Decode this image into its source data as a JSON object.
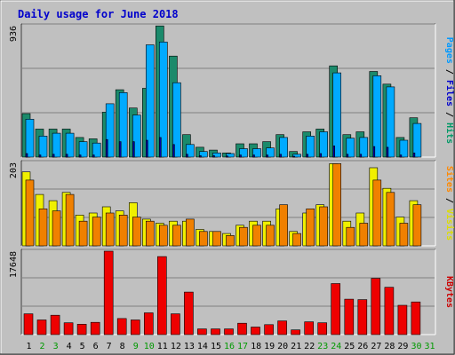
{
  "chart_data": {
    "type": "bar",
    "title": "Daily usage for June 2018",
    "categories": [
      "1",
      "2",
      "3",
      "4",
      "5",
      "6",
      "7",
      "8",
      "9",
      "10",
      "11",
      "12",
      "13",
      "14",
      "15",
      "16",
      "17",
      "18",
      "19",
      "20",
      "21",
      "22",
      "23",
      "24",
      "25",
      "26",
      "27",
      "28",
      "29",
      "30",
      "31"
    ],
    "weekend_days": [
      2,
      3,
      9,
      10,
      16,
      17,
      23,
      24,
      30,
      31
    ],
    "panels": [
      {
        "id": "hits-files-pages",
        "ymax_label": "936",
        "ymax": 936,
        "right_label": [
          {
            "text": "Pages",
            "color": "#0099ff"
          },
          {
            "text": " / ",
            "color": "#000000"
          },
          {
            "text": "Files",
            "color": "#0000cc"
          },
          {
            "text": " / ",
            "color": "#000000"
          },
          {
            "text": "Hits",
            "color": "#009966"
          }
        ],
        "series": [
          {
            "key": "hits",
            "color": "#1b8a6b",
            "values": [
              310,
              200,
              200,
              200,
              140,
              130,
              320,
              480,
              350,
              490,
              935,
              720,
              160,
              70,
              50,
              30,
              95,
              95,
              110,
              160,
              40,
              180,
              200,
              650,
              160,
              180,
              610,
              520,
              140,
              280,
              0
            ]
          },
          {
            "key": "files",
            "color": "#00aaff",
            "values": [
              270,
              150,
              170,
              170,
              110,
              100,
              380,
              460,
              300,
              800,
              820,
              530,
              90,
              40,
              30,
              25,
              60,
              60,
              65,
              140,
              20,
              150,
              180,
              600,
              135,
              140,
              580,
              500,
              120,
              240,
              0
            ]
          },
          {
            "key": "pages",
            "color": "#0000aa",
            "values": [
              25,
              15,
              20,
              20,
              15,
              15,
              125,
              110,
              110,
              120,
              140,
              90,
              20,
              10,
              10,
              8,
              15,
              15,
              15,
              20,
              5,
              20,
              25,
              80,
              20,
              20,
              75,
              70,
              15,
              30,
              0
            ]
          }
        ]
      },
      {
        "id": "visits-sites",
        "ymax_label": "203",
        "ymax": 203,
        "right_label": [
          {
            "text": "Sites",
            "color": "#ff8800"
          },
          {
            "text": " / ",
            "color": "#000000"
          },
          {
            "text": "Visits",
            "color": "#dddd00"
          }
        ],
        "series": [
          {
            "key": "visits",
            "color": "#f0f000",
            "values": [
              180,
              125,
              110,
              130,
              75,
              80,
              95,
              85,
              105,
              65,
              55,
              60,
              60,
              40,
              35,
              30,
              50,
              60,
              60,
              90,
              35,
              80,
              100,
              200,
              60,
              80,
              190,
              140,
              70,
              110,
              0
            ]
          },
          {
            "key": "sites",
            "color": "#f08000",
            "values": [
              160,
              90,
              85,
              125,
              60,
              70,
              80,
              75,
              70,
              60,
              50,
              50,
              65,
              35,
              35,
              25,
              45,
              50,
              50,
              100,
              30,
              90,
              95,
              200,
              45,
              55,
              160,
              130,
              55,
              100,
              0
            ]
          }
        ]
      },
      {
        "id": "kbytes",
        "ymax_label": "17648",
        "ymax": 17648,
        "right_label": [
          {
            "text": "KBytes",
            "color": "#cc0000"
          }
        ],
        "series": [
          {
            "key": "kbytes",
            "color": "#ee0000",
            "values": [
              4400,
              3100,
              4100,
              2500,
              2200,
              2600,
              17648,
              3400,
              3100,
              4600,
              16500,
              4400,
              9000,
              1200,
              1200,
              1200,
              2400,
              1600,
              2100,
              2900,
              1000,
              2700,
              2500,
              10800,
              7500,
              7400,
              11900,
              10000,
              6200,
              6900,
              0
            ]
          }
        ]
      }
    ]
  }
}
